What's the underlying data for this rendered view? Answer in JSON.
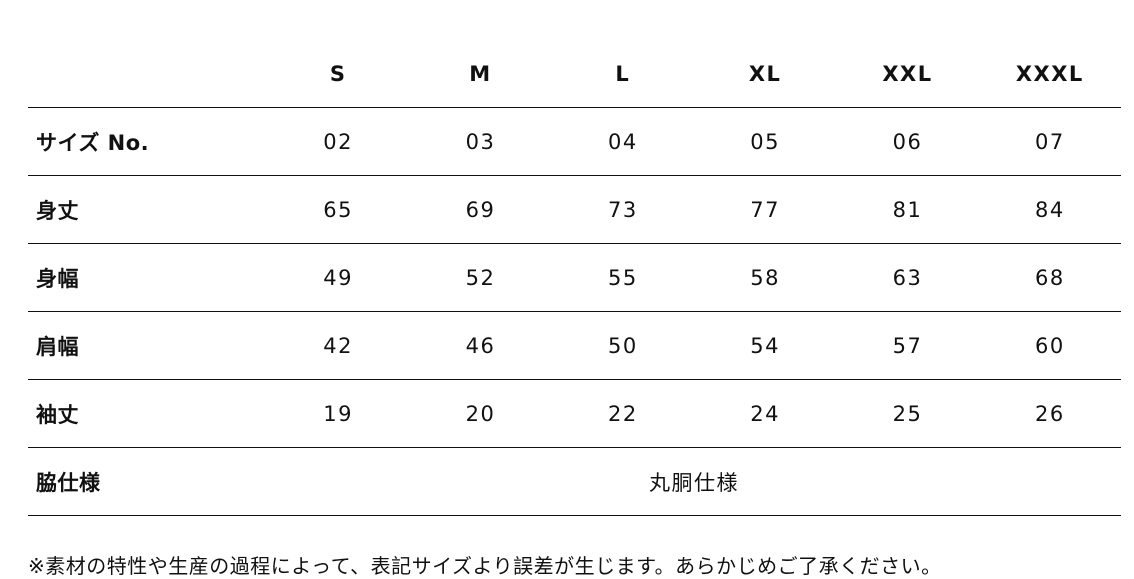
{
  "table": {
    "header": [
      "S",
      "M",
      "L",
      "XL",
      "XXL",
      "XXXL"
    ],
    "rows": [
      {
        "label": "サイズ No.",
        "cells": [
          "02",
          "03",
          "04",
          "05",
          "06",
          "07"
        ]
      },
      {
        "label": "身丈",
        "cells": [
          "65",
          "69",
          "73",
          "77",
          "81",
          "84"
        ]
      },
      {
        "label": "身幅",
        "cells": [
          "49",
          "52",
          "55",
          "58",
          "63",
          "68"
        ]
      },
      {
        "label": "肩幅",
        "cells": [
          "42",
          "46",
          "50",
          "54",
          "57",
          "60"
        ]
      },
      {
        "label": "袖丈",
        "cells": [
          "19",
          "20",
          "22",
          "24",
          "25",
          "26"
        ]
      },
      {
        "label": "脇仕様",
        "span": "丸胴仕様"
      }
    ]
  },
  "note": "※素材の特性や生産の過程によって、表記サイズより誤差が生じます。あらかじめご了承ください。"
}
